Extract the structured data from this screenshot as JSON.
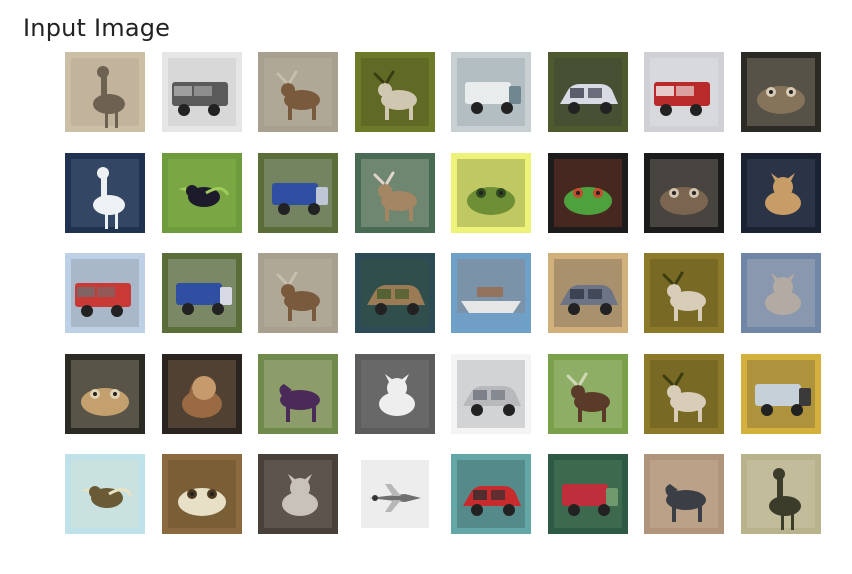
{
  "figure": {
    "title": "Input Image"
  },
  "grid": {
    "rows": 5,
    "cols": 8,
    "images": [
      {
        "subject": "ostrich",
        "palette": [
          "#cbbfa6",
          "#6d6152",
          "#a69580"
        ]
      },
      {
        "subject": "fire-truck",
        "palette": [
          "#e6e6e6",
          "#5a5a5a",
          "#b0b0b0"
        ]
      },
      {
        "subject": "deer",
        "palette": [
          "#a7a08e",
          "#7a5a3c",
          "#c7bfae"
        ]
      },
      {
        "subject": "deer",
        "palette": [
          "#6d7a2a",
          "#cfc7b0",
          "#3b3c12"
        ]
      },
      {
        "subject": "truck",
        "palette": [
          "#c9d0d2",
          "#e9ecec",
          "#6f8791"
        ]
      },
      {
        "subject": "car",
        "palette": [
          "#4e5a2d",
          "#d9dbe4",
          "#2f3342"
        ]
      },
      {
        "subject": "fire-truck",
        "palette": [
          "#cfd1d6",
          "#b92a2a",
          "#f2f2f2"
        ]
      },
      {
        "subject": "frog",
        "palette": [
          "#2b2a24",
          "#86745a",
          "#d8cbb5"
        ]
      },
      {
        "subject": "ostrich",
        "palette": [
          "#1f3250",
          "#eef1f4",
          "#6e86a5"
        ]
      },
      {
        "subject": "bird",
        "palette": [
          "#6e9b3c",
          "#1d1a2b",
          "#9fcb5a"
        ]
      },
      {
        "subject": "truck",
        "palette": [
          "#5b6e3a",
          "#2f4fa2",
          "#bfc7d6"
        ]
      },
      {
        "subject": "deer",
        "palette": [
          "#4a6b53",
          "#a48762",
          "#e1d6c7"
        ]
      },
      {
        "subject": "frog",
        "palette": [
          "#eff279",
          "#6f8f36",
          "#2e4a1e"
        ]
      },
      {
        "subject": "frog",
        "palette": [
          "#1c1c1c",
          "#4ea23e",
          "#c84a2e"
        ]
      },
      {
        "subject": "frog",
        "palette": [
          "#1b1b1b",
          "#7a6550",
          "#d1c3ae"
        ]
      },
      {
        "subject": "cat",
        "palette": [
          "#1b2232",
          "#c79c66",
          "#5b6b82"
        ]
      },
      {
        "subject": "fire-truck",
        "palette": [
          "#bdd0e6",
          "#c93a36",
          "#6e6e6e"
        ]
      },
      {
        "subject": "truck",
        "palette": [
          "#5b6e3a",
          "#2f4fa2",
          "#d9d9e6"
        ]
      },
      {
        "subject": "deer",
        "palette": [
          "#a7a08e",
          "#7a5a3c",
          "#c7bfae"
        ]
      },
      {
        "subject": "car",
        "palette": [
          "#2d4b57",
          "#9a7b55",
          "#3d5a2a"
        ]
      },
      {
        "subject": "ship",
        "palette": [
          "#6fa0c7",
          "#e6e6e6",
          "#9a6b4a"
        ]
      },
      {
        "subject": "car",
        "palette": [
          "#d2b07b",
          "#6c7486",
          "#2f3342"
        ]
      },
      {
        "subject": "deer",
        "palette": [
          "#8c7a2a",
          "#d7cdb8",
          "#3b3c12"
        ]
      },
      {
        "subject": "cat",
        "palette": [
          "#6f86a6",
          "#b3aba3",
          "#d7d0c9"
        ]
      },
      {
        "subject": "frog",
        "palette": [
          "#2b2a24",
          "#c4a06e",
          "#e1d2b2"
        ]
      },
      {
        "subject": "dog",
        "palette": [
          "#2a2320",
          "#9a6a42",
          "#c69a6c"
        ]
      },
      {
        "subject": "horse",
        "palette": [
          "#6f8a4a",
          "#4a2a58",
          "#e6d6c6"
        ]
      },
      {
        "subject": "cat",
        "palette": [
          "#5c5c5c",
          "#eeeeee",
          "#8a8a8a"
        ]
      },
      {
        "subject": "car",
        "palette": [
          "#f4f4f4",
          "#b7b9bd",
          "#6a6f78"
        ]
      },
      {
        "subject": "deer",
        "palette": [
          "#7aa04a",
          "#5a3b2a",
          "#cfd8b6"
        ]
      },
      {
        "subject": "deer",
        "palette": [
          "#8c7a2a",
          "#d7cdb8",
          "#3b3c12"
        ]
      },
      {
        "subject": "truck",
        "palette": [
          "#d4b13c",
          "#c6d0d8",
          "#3a3a3a"
        ]
      },
      {
        "subject": "bird",
        "palette": [
          "#bfe2ea",
          "#6a5a36",
          "#e9e2c3"
        ]
      },
      {
        "subject": "frog",
        "palette": [
          "#8a6a3e",
          "#e7e0c6",
          "#4b3a1f"
        ]
      },
      {
        "subject": "cat",
        "palette": [
          "#4a403a",
          "#c9c2bb",
          "#9a918b"
        ]
      },
      {
        "subject": "airplane",
        "palette": [
          "#ffffff",
          "#6f6f6f",
          "#b7b7b7"
        ]
      },
      {
        "subject": "car",
        "palette": [
          "#63a8a7",
          "#c72b2b",
          "#2a2f33"
        ]
      },
      {
        "subject": "truck",
        "palette": [
          "#2c5a44",
          "#bf2f3b",
          "#6f9a6e"
        ]
      },
      {
        "subject": "horse",
        "palette": [
          "#b0957a",
          "#3b3f45",
          "#d8c6b1"
        ]
      },
      {
        "subject": "ostrich",
        "palette": [
          "#b9b38d",
          "#3b3c2a",
          "#e0d9c6"
        ]
      }
    ]
  }
}
